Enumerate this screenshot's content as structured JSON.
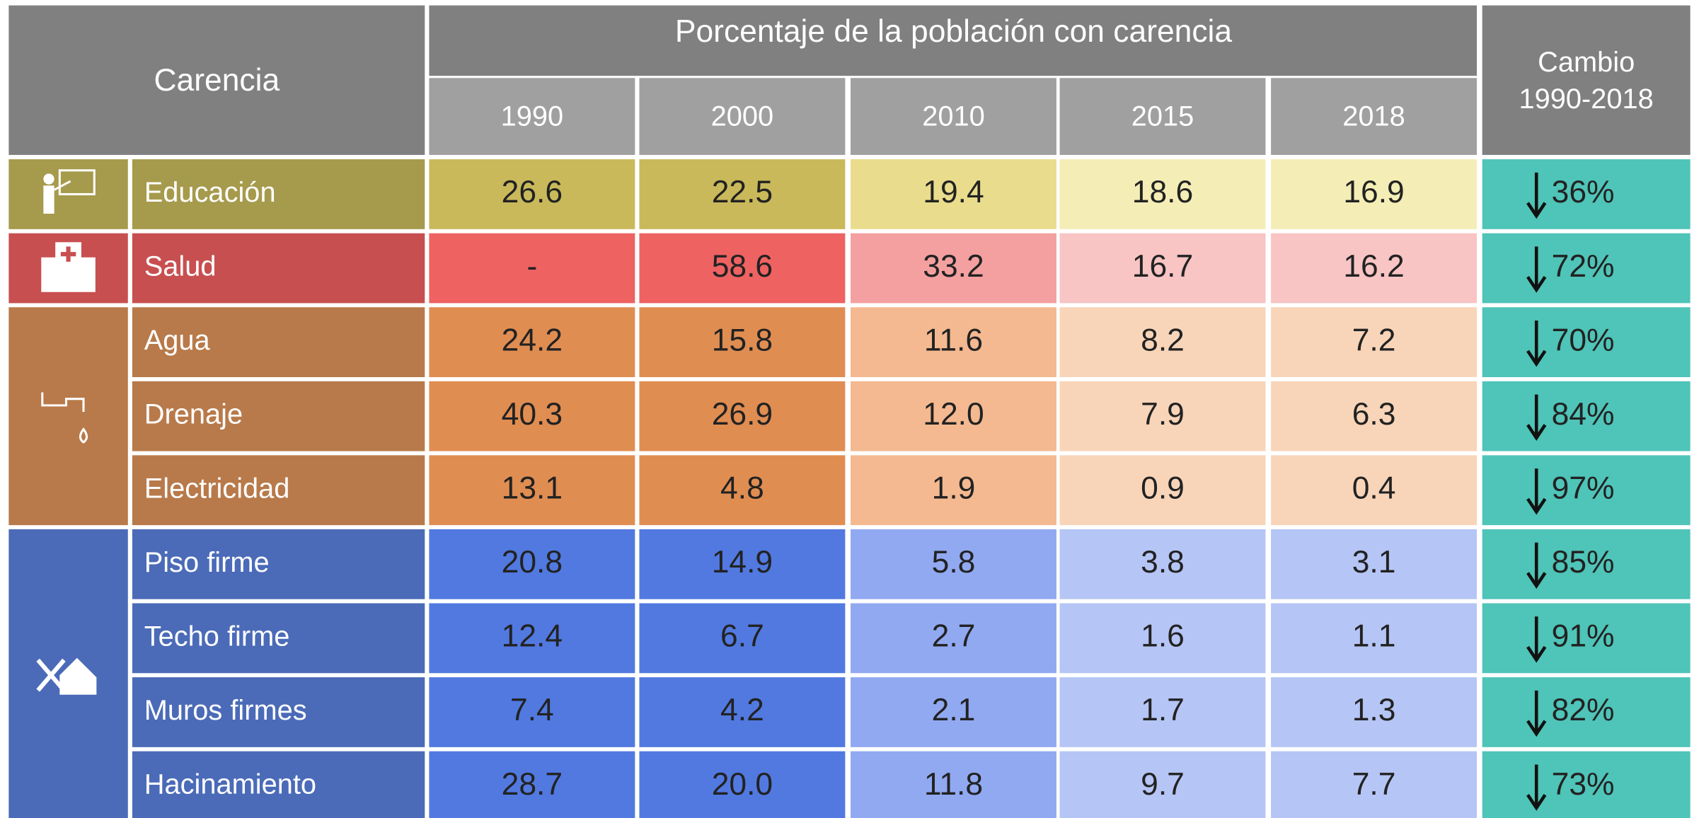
{
  "header": {
    "carencia": "Carencia",
    "title": "Porcentaje de la población con carencia",
    "years": [
      "1990",
      "2000",
      "2010",
      "2015",
      "2018"
    ],
    "change": [
      "Cambio",
      "1990-2018"
    ]
  },
  "groups": [
    {
      "colors": [
        "#a69a4c",
        "#c9b95a",
        "#e9dc8c",
        "#f4edb6"
      ],
      "rows": [
        {
          "label": "Educación",
          "values": [
            "26.6",
            "22.5",
            "19.4",
            "18.6",
            "16.9"
          ],
          "change": "36%"
        }
      ]
    },
    {
      "colors": [
        "#c84f50",
        "#ee6262",
        "#f4a0a0",
        "#f8c4c4"
      ],
      "rows": [
        {
          "label": "Salud",
          "values": [
            "-",
            "58.6",
            "33.2",
            "16.7",
            "16.2"
          ],
          "change": "72%"
        }
      ]
    },
    {
      "colors": [
        "#b87a4a",
        "#e08d52",
        "#f4b990",
        "#f8d5b9"
      ],
      "rows": [
        {
          "label": "Agua",
          "values": [
            "24.2",
            "15.8",
            "11.6",
            "8.2",
            "7.2"
          ],
          "change": "70%"
        },
        {
          "label": "Drenaje",
          "values": [
            "40.3",
            "26.9",
            "12.0",
            "7.9",
            "6.3"
          ],
          "change": "84%"
        },
        {
          "label": "Electricidad",
          "values": [
            "13.1",
            "4.8",
            "1.9",
            "0.9",
            "0.4"
          ],
          "change": "97%"
        }
      ]
    },
    {
      "colors": [
        "#4b6bb8",
        "#5179e0",
        "#91a9f1",
        "#b5c5f5"
      ],
      "rows": [
        {
          "label": "Piso firme",
          "values": [
            "20.8",
            "14.9",
            "5.8",
            "3.8",
            "3.1"
          ],
          "change": "85%"
        },
        {
          "label": "Techo firme",
          "values": [
            "12.4",
            "6.7",
            "2.7",
            "1.6",
            "1.1"
          ],
          "change": "91%"
        },
        {
          "label": "Muros firmes",
          "values": [
            "7.4",
            "4.2",
            "2.1",
            "1.7",
            "1.3"
          ],
          "change": "82%"
        },
        {
          "label": "Hacinamiento",
          "values": [
            "28.7",
            "20.0",
            "11.8",
            "9.7",
            "7.7"
          ],
          "change": "73%"
        }
      ]
    }
  ],
  "change_color": "#4fc4b8"
}
